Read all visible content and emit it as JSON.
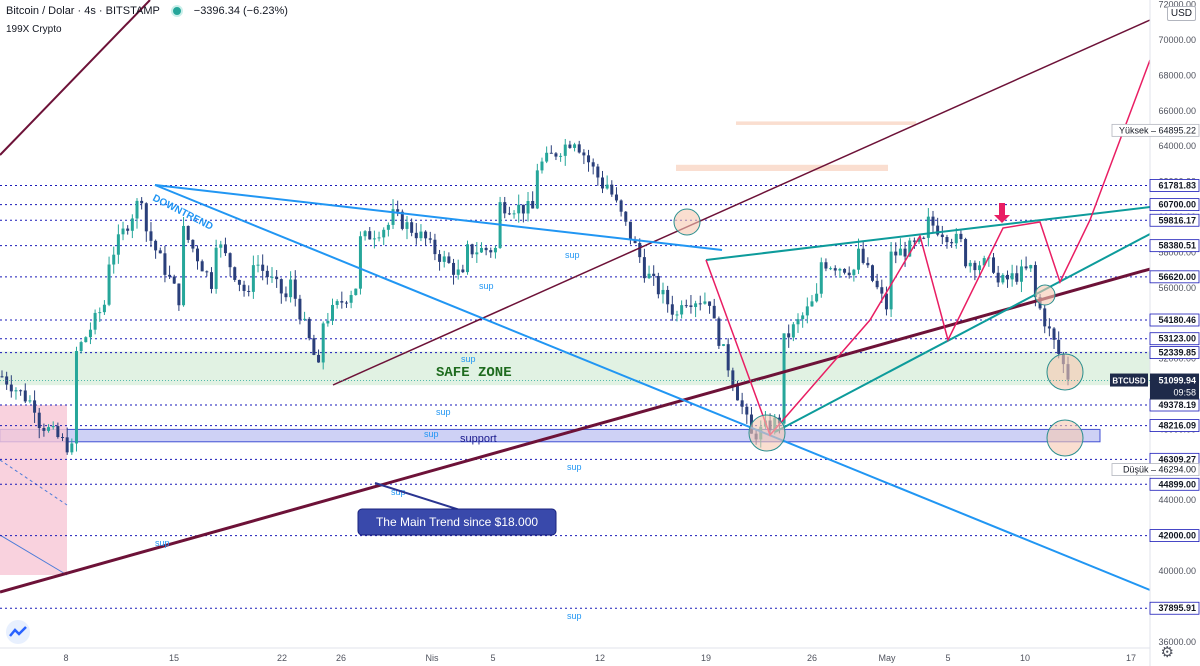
{
  "header": {
    "symbol": "Bitcoin / Dolar · 4s · BITSTAMP",
    "change": "−3396.34 (−6.23%)",
    "indicator": "199X Crypto"
  },
  "currency_button": "USD",
  "colors": {
    "up_candle": "#26a69a",
    "down_candle": "#2a3f7a",
    "level_line": "#1a1ab8",
    "downtrend": "#2196f3",
    "main_trend": "#6d1238",
    "wedge": "#0d9b9b",
    "pink": "#e91e63",
    "safe_zone": "#d9efdc",
    "support_zone": "#c9cdf5",
    "resistance_zone": "#f6c8b0"
  },
  "icons": {
    "logo": "tradingview-logo-icon",
    "settings": "gear-icon",
    "marker": "arrow-down-marker-icon"
  },
  "chart_data": {
    "type": "candlestick",
    "symbol": "BTCUSD",
    "exchange": "BITSTAMP",
    "timeframe": "4s",
    "y_axis": {
      "ticks": [
        36000,
        38000,
        40000,
        42000,
        44000,
        46000,
        48000,
        50000,
        52000,
        54000,
        56000,
        58000,
        60000,
        62000,
        64000,
        66000,
        68000,
        70000,
        72000
      ],
      "tick_labels": [
        "36000.00",
        "38000.00",
        "40000.00",
        "42000.00",
        "44000.00",
        "46000.00",
        "48000.00",
        "50000.00",
        "52000.00",
        "54000.00",
        "56000.00",
        "58000.00",
        "60000.00",
        "62000.00",
        "64000.00",
        "66000.00",
        "68000.00",
        "70000.00",
        "72000.00"
      ]
    },
    "x_axis": {
      "tick_labels": [
        "8",
        "15",
        "22",
        "26",
        "Nis",
        "5",
        "12",
        "19",
        "26",
        "May",
        "5",
        "10",
        "17"
      ]
    },
    "horizontal_levels": [
      {
        "value": 61781.83,
        "label": "61781.83"
      },
      {
        "value": 60700.0,
        "label": "60700.00"
      },
      {
        "value": 59816.17,
        "label": "59816.17"
      },
      {
        "value": 58380.51,
        "label": "58380.51"
      },
      {
        "value": 56620.0,
        "label": "56620.00"
      },
      {
        "value": 54180.46,
        "label": "54180.46"
      },
      {
        "value": 53123.0,
        "label": "53123.00"
      },
      {
        "value": 52339.85,
        "label": "52339.85"
      },
      {
        "value": 49378.19,
        "label": "49378.19"
      },
      {
        "value": 48216.09,
        "label": "48216.09"
      },
      {
        "value": 46309.27,
        "label": "46309.27"
      },
      {
        "value": 44899.0,
        "label": "44899.00"
      },
      {
        "value": 42000.0,
        "label": "42000.00"
      },
      {
        "value": 37895.91,
        "label": "37895.91"
      }
    ],
    "high_marker": {
      "label": "Yüksek",
      "value": "64895.22"
    },
    "low_marker": {
      "label": "Düşük",
      "value": "46294.00"
    },
    "last_price": {
      "symbol": "BTCUSD",
      "value": "51099.94",
      "countdown": "09:58"
    },
    "zones": {
      "safe_zone": {
        "label": "SAFE ZONE",
        "from": 50500,
        "to": 52400
      },
      "support": {
        "label": "support",
        "from": 47300,
        "to": 48000
      },
      "resistance_1": {
        "from": 65200,
        "to": 65400
      },
      "resistance_2": {
        "from": 62600,
        "to": 62950
      }
    },
    "annotations": {
      "downtrend": "DOWNTREND",
      "main_trend": "The Main Trend since $18.000",
      "sup_labels": [
        "sup",
        "sup",
        "sup",
        "sup",
        "sup",
        "sup",
        "sup",
        "sup",
        "sup"
      ]
    },
    "price_path": [
      [
        51000,
        49200
      ],
      [
        48500,
        46800
      ],
      [
        52000,
        55500
      ],
      [
        57500,
        61500
      ],
      [
        59500,
        55300
      ],
      [
        59600,
        55900
      ],
      [
        58800,
        55200
      ],
      [
        57800,
        55400
      ],
      [
        57000,
        50800
      ],
      [
        54000,
        56200
      ],
      [
        58600,
        59700
      ],
      [
        60100,
        58600
      ],
      [
        58400,
        56500
      ],
      [
        58100,
        58200
      ],
      [
        60700,
        60400
      ],
      [
        62700,
        64300
      ],
      [
        64800,
        61500
      ],
      [
        62000,
        57500
      ],
      [
        57200,
        54400
      ],
      [
        55400,
        55300
      ],
      [
        54200,
        48200
      ],
      [
        47500,
        48700
      ],
      [
        53000,
        55600
      ],
      [
        57500,
        57000
      ],
      [
        58300,
        54500
      ],
      [
        57800,
        58600
      ],
      [
        59800,
        58500
      ],
      [
        57600,
        57200
      ],
      [
        56200,
        57100
      ],
      [
        55800,
        51000
      ]
    ]
  }
}
